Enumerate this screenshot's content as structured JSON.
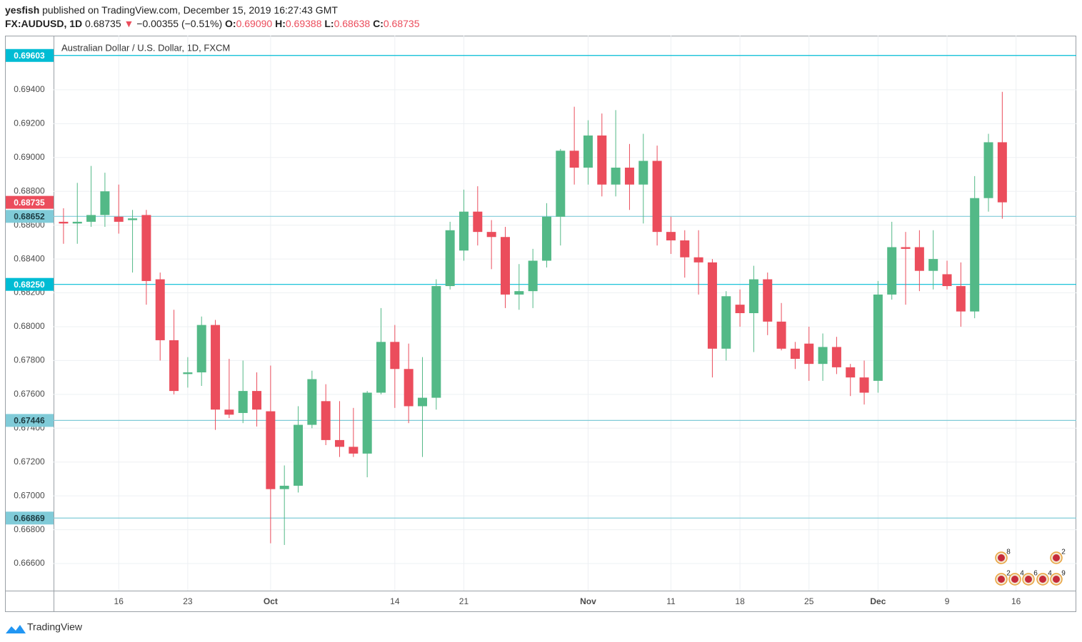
{
  "header": {
    "user": "yesfish",
    "published": "published on TradingView.com, December 15, 2019 16:27:43 GMT",
    "symbol": "FX:AUDUSD, 1D",
    "last": "0.68735",
    "arrow": "▼",
    "change": "−0.00355 (−0.51%)",
    "ohlc": [
      {
        "key": "O:",
        "value": "0.69090"
      },
      {
        "key": "H:",
        "value": "0.69388"
      },
      {
        "key": "L:",
        "value": "0.68638"
      },
      {
        "key": "C:",
        "value": "0.68735"
      }
    ]
  },
  "chart_data": {
    "type": "candlestick",
    "title": "Australian Dollar / U.S. Dollar, 1D, FXCM",
    "categories": [
      null,
      null,
      null,
      null,
      "16",
      null,
      null,
      null,
      null,
      "23",
      null,
      null,
      null,
      null,
      null,
      "Oct",
      null,
      null,
      null,
      null,
      null,
      null,
      null,
      null,
      "14",
      null,
      null,
      null,
      null,
      "21",
      null,
      null,
      null,
      null,
      null,
      null,
      null,
      null,
      "Nov",
      null,
      null,
      null,
      null,
      null,
      "11",
      null,
      null,
      null,
      null,
      "18",
      null,
      null,
      null,
      null,
      "25",
      null,
      null,
      null,
      null,
      "Dec",
      null,
      null,
      null,
      null,
      "9",
      null,
      null,
      null,
      null,
      "16"
    ],
    "open": [
      0.6862,
      0.6861,
      0.6862,
      0.6866,
      0.6865,
      0.6863,
      0.6866,
      0.6828,
      0.6792,
      0.6772,
      0.6773,
      0.6801,
      0.6751,
      0.6749,
      0.6762,
      0.675,
      0.6704,
      0.6706,
      0.6742,
      0.6756,
      0.6733,
      0.6729,
      0.6725,
      0.6761,
      0.6791,
      0.6775,
      0.6753,
      0.6758,
      0.6824,
      0.6845,
      0.6868,
      0.6856,
      0.6853,
      0.6819,
      0.6821,
      0.6839,
      0.6865,
      0.6904,
      0.6894,
      0.6913,
      0.6884,
      0.6894,
      0.6884,
      0.6898,
      0.6856,
      0.6851,
      0.6841,
      0.6838,
      0.6787,
      0.6813,
      0.6808,
      0.6828,
      0.6803,
      0.6787,
      0.679,
      0.6778,
      0.6788,
      0.6776,
      0.677,
      0.6768,
      0.6819,
      0.6847,
      0.6847,
      0.6833,
      0.6831,
      0.6824,
      0.6809,
      0.6876,
      0.6909,
      null
    ],
    "high": [
      0.687,
      0.6885,
      0.6895,
      0.6891,
      0.6884,
      0.6869,
      0.6869,
      0.6832,
      0.681,
      0.6782,
      0.6806,
      0.6804,
      0.6781,
      0.678,
      0.6773,
      0.6777,
      0.6718,
      0.6753,
      0.6774,
      0.6766,
      0.6756,
      0.6752,
      0.6762,
      0.6811,
      0.6801,
      0.679,
      0.6782,
      0.6828,
      0.6862,
      0.6881,
      0.6883,
      0.6863,
      0.6859,
      0.6837,
      0.6846,
      0.6873,
      0.6905,
      0.693,
      0.6922,
      0.6926,
      0.6928,
      0.6908,
      0.6914,
      0.6907,
      0.6865,
      0.6857,
      0.6857,
      0.684,
      0.6821,
      0.6822,
      0.6836,
      0.6832,
      0.6814,
      0.6791,
      0.68,
      0.6796,
      0.6794,
      0.6778,
      0.678,
      0.6827,
      0.6862,
      0.6856,
      0.6857,
      0.6857,
      0.6839,
      0.6838,
      0.6889,
      0.6914,
      0.69388,
      null
    ],
    "low": [
      0.6849,
      0.6849,
      0.6859,
      0.6859,
      0.6855,
      0.6832,
      0.6813,
      0.678,
      0.676,
      0.6764,
      0.6765,
      0.6739,
      0.6746,
      0.6743,
      0.6741,
      0.6672,
      0.6671,
      0.6702,
      0.674,
      0.673,
      0.6723,
      0.6723,
      0.6711,
      0.676,
      0.6752,
      0.6743,
      0.6723,
      0.6751,
      0.6822,
      0.6839,
      0.6848,
      0.6834,
      0.6811,
      0.681,
      0.6811,
      0.6835,
      0.6848,
      0.6884,
      0.6884,
      0.6877,
      0.6877,
      0.6869,
      0.6861,
      0.6848,
      0.6843,
      0.6829,
      0.6819,
      0.677,
      0.678,
      0.68,
      0.6785,
      0.6795,
      0.6786,
      0.6775,
      0.6768,
      0.6768,
      0.6772,
      0.6759,
      0.6754,
      0.6761,
      0.6816,
      0.6813,
      0.6821,
      0.6822,
      0.6822,
      0.68,
      0.6805,
      0.6868,
      0.68638,
      null
    ],
    "close": [
      0.6861,
      0.6862,
      0.6866,
      0.688,
      0.6862,
      0.6864,
      0.6827,
      0.6792,
      0.6762,
      0.6773,
      0.6801,
      0.6751,
      0.6748,
      0.6762,
      0.6751,
      0.6704,
      0.6706,
      0.6742,
      0.6769,
      0.6733,
      0.6729,
      0.6725,
      0.6761,
      0.6791,
      0.6775,
      0.6753,
      0.6758,
      0.6824,
      0.6857,
      0.6868,
      0.6856,
      0.6853,
      0.6819,
      0.6821,
      0.6839,
      0.6865,
      0.6904,
      0.6894,
      0.6913,
      0.6884,
      0.6894,
      0.6884,
      0.6898,
      0.6856,
      0.6851,
      0.6841,
      0.6838,
      0.6787,
      0.6818,
      0.6808,
      0.6828,
      0.6803,
      0.6787,
      0.6781,
      0.6778,
      0.6788,
      0.6776,
      0.677,
      0.6761,
      0.6819,
      0.6847,
      0.6846,
      0.6833,
      0.684,
      0.6824,
      0.6809,
      0.6876,
      0.6909,
      0.68735,
      null
    ],
    "up_color": "#53b987",
    "down_color": "#eb4d5c",
    "ylim": [
      0.6644,
      0.6972
    ],
    "yticks": [
      {
        "value": 0.666,
        "label": "0.66600"
      },
      {
        "value": 0.668,
        "label": "0.66800"
      },
      {
        "value": 0.67,
        "label": "0.67000"
      },
      {
        "value": 0.672,
        "label": "0.67200"
      },
      {
        "value": 0.674,
        "label": "0.67400"
      },
      {
        "value": 0.676,
        "label": "0.67600"
      },
      {
        "value": 0.678,
        "label": "0.67800"
      },
      {
        "value": 0.68,
        "label": "0.68000"
      },
      {
        "value": 0.682,
        "label": "0.68200"
      },
      {
        "value": 0.684,
        "label": "0.68400"
      },
      {
        "value": 0.686,
        "label": "0.68600"
      },
      {
        "value": 0.688,
        "label": "0.68800"
      },
      {
        "value": 0.69,
        "label": "0.69000"
      },
      {
        "value": 0.692,
        "label": "0.69200"
      },
      {
        "value": 0.694,
        "label": "0.69400"
      }
    ],
    "grid": true,
    "hlines": [
      {
        "value": 0.69603,
        "label": "0.69603",
        "color": "#00bcd4"
      },
      {
        "value": 0.68652,
        "label": "0.68652",
        "color": "#80cbd8"
      },
      {
        "value": 0.6825,
        "label": "0.68250",
        "color": "#00bcd4"
      },
      {
        "value": 0.67446,
        "label": "0.67446",
        "color": "#80cbd8"
      },
      {
        "value": 0.66869,
        "label": "0.66869",
        "color": "#80cbd8"
      }
    ],
    "last_price": {
      "value": 0.68735,
      "label": "0.68735",
      "color": "#eb4d5c"
    },
    "events": {
      "top": [
        "8",
        "2"
      ],
      "bottom": [
        "2",
        "4",
        "6",
        "4",
        "9"
      ]
    }
  },
  "footer": {
    "brand": "TradingView"
  }
}
